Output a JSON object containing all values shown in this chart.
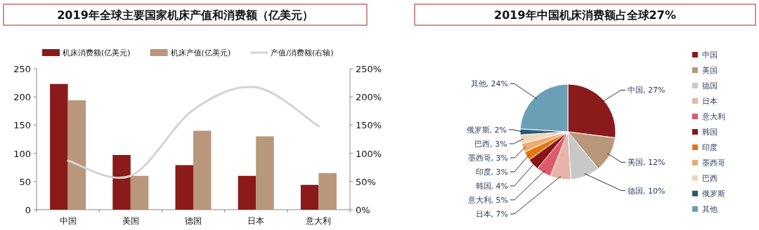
{
  "chart_data": [
    {
      "type": "bar",
      "title": "2019年全球主要国家机床产值和消费额（亿美元）",
      "categories": [
        "中国",
        "美国",
        "德国",
        "日本",
        "意大利"
      ],
      "series": [
        {
          "name": "机床消费额(亿美元)",
          "color": "#8b1a1a",
          "values": [
            223,
            97,
            79,
            60,
            44
          ]
        },
        {
          "name": "机床产值(亿美元)",
          "color": "#b8977a",
          "values": [
            194,
            60,
            140,
            130,
            65
          ]
        },
        {
          "name": "产值/消费额(右轴)",
          "color": "#d3d3d3",
          "type": "line",
          "axis": "y2",
          "values": [
            87,
            60,
            177,
            217,
            148
          ]
        }
      ],
      "ylim": [
        0,
        250
      ],
      "yticks": [
        0,
        50,
        100,
        150,
        200,
        250
      ],
      "y2lim": [
        0,
        250
      ],
      "y2ticks": [
        {
          "value": 0,
          "label": "0%"
        },
        {
          "value": 50,
          "label": "50%"
        },
        {
          "value": 100,
          "label": "100%"
        },
        {
          "value": 150,
          "label": "150%"
        },
        {
          "value": 200,
          "label": "200%"
        },
        {
          "value": 250,
          "label": "250%"
        }
      ],
      "legend": "top",
      "marker": "none"
    },
    {
      "type": "pie",
      "title": "2019年中国机床消费额占全球27%",
      "categories": [
        "中国",
        "美国",
        "德国",
        "日本",
        "意大利",
        "韩国",
        "印度",
        "墨西哥",
        "巴西",
        "俄罗斯",
        "其他"
      ],
      "values": [
        27,
        12,
        10,
        7,
        5,
        4,
        3,
        3,
        3,
        2,
        24
      ],
      "value_labels": [
        "中国, 27%",
        "美国, 12%",
        "德国, 10%",
        "日本, 7%",
        "意大利, 5%",
        "韩国, 4%",
        "印度, 3%",
        "墨西哥, 3%",
        "巴西, 3%",
        "俄罗斯, 2%",
        "其他, 24%"
      ],
      "colors": [
        "#8b1a1a",
        "#b8977a",
        "#c8c8c8",
        "#e8b4a8",
        "#dc5a6a",
        "#8b1515",
        "#e8740f",
        "#eeaa70",
        "#efd6b8",
        "#2f5878",
        "#6a9fb5"
      ],
      "legend": "right"
    }
  ]
}
